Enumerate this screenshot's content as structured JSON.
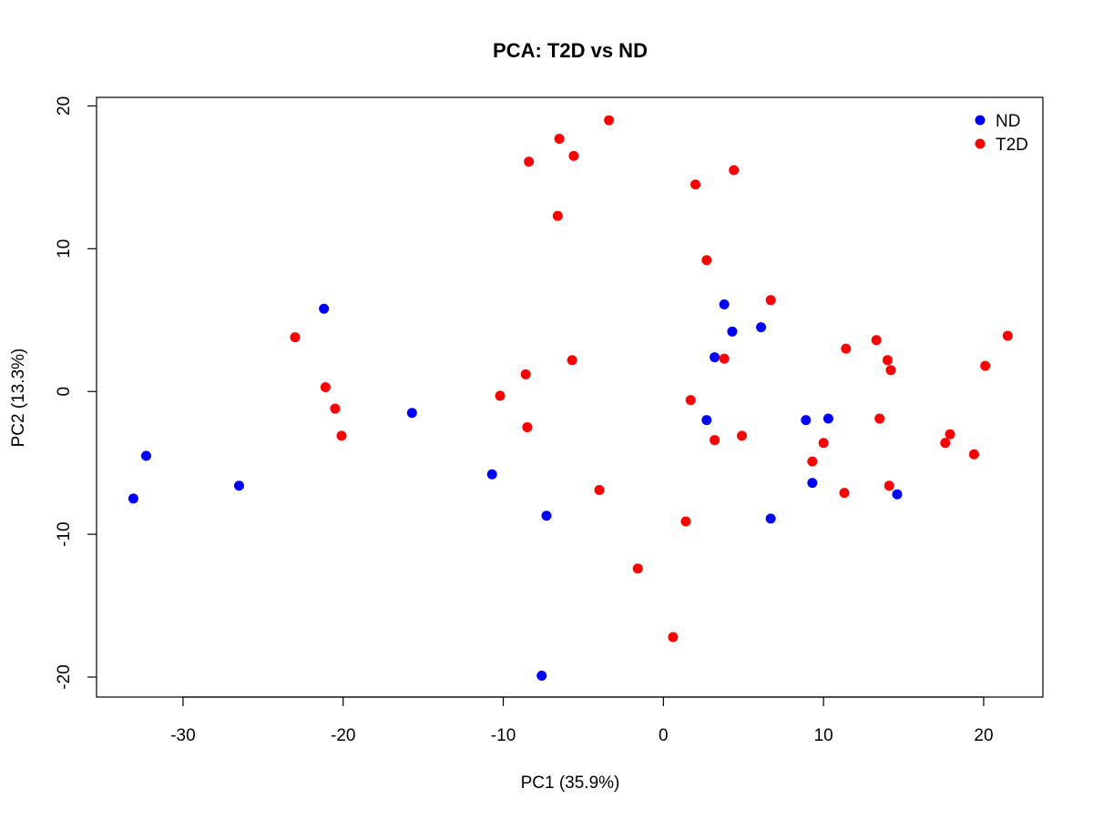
{
  "chart_data": {
    "type": "scatter",
    "title": "PCA: T2D vs ND",
    "xlabel": "PC1 (35.9%)",
    "ylabel": "PC2 (13.3%)",
    "xlim": [
      -35.4,
      23.7
    ],
    "ylim": [
      -21.4,
      20.6
    ],
    "xticks": [
      -30,
      -20,
      -10,
      0,
      10,
      20
    ],
    "yticks": [
      -20,
      -10,
      0,
      10,
      20
    ],
    "grid": false,
    "legend_position": "top-right",
    "series": [
      {
        "name": "ND",
        "color": "#0000ff",
        "points": [
          [
            -33.1,
            -7.5
          ],
          [
            -32.3,
            -4.5
          ],
          [
            -26.5,
            -6.6
          ],
          [
            -21.2,
            5.8
          ],
          [
            -15.7,
            -1.5
          ],
          [
            -10.7,
            -5.8
          ],
          [
            -7.3,
            -8.7
          ],
          [
            -7.6,
            -19.9
          ],
          [
            2.7,
            -2.0
          ],
          [
            3.2,
            2.4
          ],
          [
            3.8,
            6.1
          ],
          [
            4.3,
            4.2
          ],
          [
            6.1,
            4.5
          ],
          [
            6.7,
            -8.9
          ],
          [
            8.9,
            -2.0
          ],
          [
            9.3,
            -6.4
          ],
          [
            10.3,
            -1.9
          ],
          [
            14.6,
            -7.2
          ]
        ]
      },
      {
        "name": "T2D",
        "color": "#ff0000",
        "points": [
          [
            -23.0,
            3.8
          ],
          [
            -21.1,
            0.3
          ],
          [
            -20.5,
            -1.2
          ],
          [
            -20.1,
            -3.1
          ],
          [
            -10.2,
            -0.3
          ],
          [
            -8.6,
            1.2
          ],
          [
            -8.5,
            -2.5
          ],
          [
            -8.4,
            16.1
          ],
          [
            -6.6,
            12.3
          ],
          [
            -6.5,
            17.7
          ],
          [
            -5.7,
            2.2
          ],
          [
            -5.6,
            16.5
          ],
          [
            -4.0,
            -6.9
          ],
          [
            -3.4,
            19.0
          ],
          [
            -1.6,
            -12.4
          ],
          [
            0.6,
            -17.2
          ],
          [
            1.4,
            -9.1
          ],
          [
            1.7,
            -0.6
          ],
          [
            2.0,
            14.5
          ],
          [
            2.7,
            9.2
          ],
          [
            3.2,
            -3.4
          ],
          [
            3.8,
            2.3
          ],
          [
            4.4,
            15.5
          ],
          [
            4.9,
            -3.1
          ],
          [
            6.7,
            6.4
          ],
          [
            9.3,
            -4.9
          ],
          [
            10.0,
            -3.6
          ],
          [
            11.3,
            -7.1
          ],
          [
            11.4,
            3.0
          ],
          [
            13.3,
            3.6
          ],
          [
            13.5,
            -1.9
          ],
          [
            14.0,
            2.2
          ],
          [
            14.1,
            -6.6
          ],
          [
            14.2,
            1.5
          ],
          [
            17.6,
            -3.6
          ],
          [
            17.9,
            -3.0
          ],
          [
            19.4,
            -4.4
          ],
          [
            20.1,
            1.8
          ],
          [
            21.5,
            3.9
          ]
        ]
      }
    ]
  }
}
